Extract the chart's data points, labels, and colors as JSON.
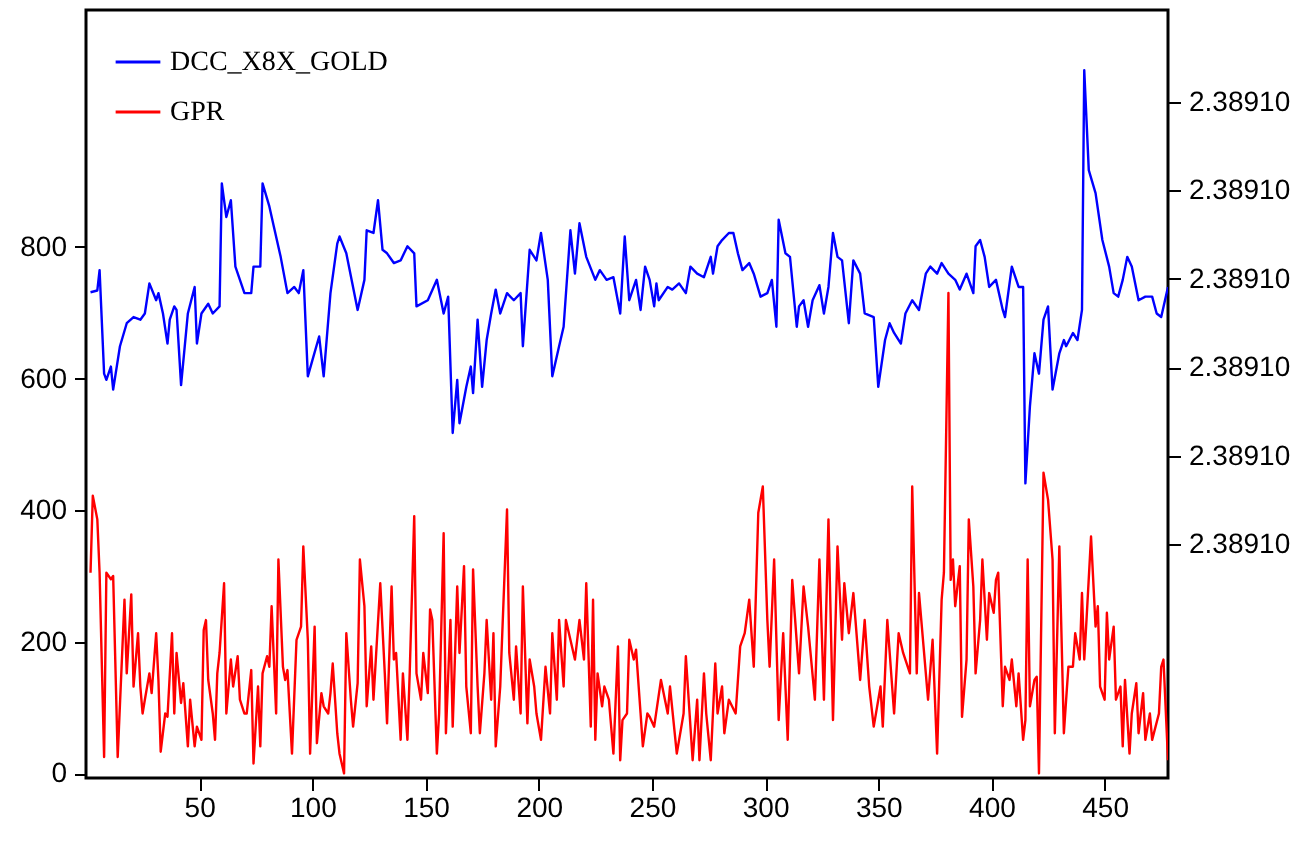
{
  "chart_data": {
    "type": "line",
    "legend": "top left",
    "marker": "none",
    "line_style": "solid",
    "xlim": [
      0,
      478
    ],
    "xticks": [
      50,
      100,
      150,
      200,
      250,
      300,
      350,
      400,
      450
    ],
    "ylim": [
      -7,
      1160
    ],
    "yticks": [
      0,
      200,
      400,
      600,
      800
    ],
    "y2lim": [
      2.38909536,
      2.38910404
    ],
    "y2ticks": [
      {
        "value": 2.389098,
        "label": "2.38910"
      },
      {
        "value": 2.389099,
        "label": "2.38910"
      },
      {
        "value": 2.3891,
        "label": "2.38910"
      },
      {
        "value": 2.389101,
        "label": "2.38910"
      },
      {
        "value": 2.389102,
        "label": "2.38910"
      },
      {
        "value": 2.389103,
        "label": "2.38910"
      }
    ],
    "series": [
      {
        "name": "DCC_X8X_GOLD",
        "color": "#0000ff",
        "axis": "y2",
        "x": [
          2,
          5,
          6,
          8,
          9,
          11,
          12,
          15,
          18,
          21,
          24,
          26,
          28,
          31,
          32,
          34,
          36,
          37,
          39,
          40,
          42,
          45,
          48,
          49,
          51,
          54,
          56,
          59,
          60,
          62,
          64,
          66,
          70,
          73,
          74,
          77,
          78,
          81,
          83,
          86,
          89,
          92,
          94,
          96,
          98,
          100,
          103,
          105,
          108,
          111,
          112,
          115,
          120,
          123,
          124,
          127,
          129,
          131,
          133,
          136,
          139,
          142,
          145,
          146,
          151,
          155,
          158,
          160,
          162,
          164,
          165,
          168,
          170,
          171,
          173,
          175,
          177,
          179,
          181,
          183,
          186,
          189,
          192,
          193,
          196,
          199,
          201,
          204,
          206,
          209,
          211,
          214,
          216,
          218,
          221,
          225,
          227,
          230,
          233,
          236,
          238,
          240,
          243,
          245,
          247,
          249,
          251,
          252,
          253,
          257,
          259,
          262,
          265,
          267,
          270,
          273,
          276,
          277,
          279,
          281,
          284,
          286,
          288,
          290,
          293,
          295,
          298,
          301,
          303,
          305,
          306,
          309,
          311,
          314,
          315,
          317,
          319,
          321,
          324,
          326,
          328,
          330,
          332,
          334,
          337,
          339,
          342,
          344,
          348,
          350,
          353,
          355,
          357,
          360,
          362,
          365,
          368,
          371,
          373,
          376,
          378,
          381,
          384,
          386,
          389,
          392,
          393,
          395,
          397,
          399,
          402,
          405,
          406,
          409,
          412,
          414,
          415,
          417,
          419,
          421,
          423,
          425,
          427,
          430,
          432,
          433,
          436,
          438,
          440,
          441,
          443,
          446,
          449,
          452,
          454,
          456,
          458,
          460,
          462,
          465,
          468,
          471,
          473,
          475,
          478
        ],
        "values": [
          2.38910085,
          2.38910087,
          2.3891011,
          2.38909993,
          2.38909986,
          2.38910001,
          2.38909975,
          2.38910024,
          2.3891005,
          2.38910057,
          2.38910054,
          2.38910061,
          2.38910095,
          2.38910076,
          2.38910084,
          2.38910061,
          2.38910027,
          2.38910054,
          2.38910069,
          2.38910065,
          2.3890998,
          2.38910061,
          2.38910091,
          2.38910027,
          2.38910061,
          2.38910072,
          2.38910061,
          2.38910069,
          2.38910208,
          2.3891017,
          2.38910189,
          2.38910114,
          2.38910084,
          2.38910084,
          2.38910114,
          2.38910114,
          2.38910208,
          2.38910182,
          2.38910159,
          2.38910125,
          2.38910084,
          2.38910091,
          2.38910084,
          2.3891011,
          2.3890999,
          2.38910008,
          2.38910035,
          2.3890999,
          2.38910084,
          2.3891014,
          2.38910148,
          2.38910129,
          2.38910065,
          2.38910099,
          2.38910155,
          2.38910152,
          2.38910189,
          2.38910133,
          2.38910129,
          2.38910118,
          2.38910121,
          2.38910137,
          2.38910129,
          2.38910069,
          2.38910076,
          2.38910099,
          2.38910061,
          2.3891008,
          2.38909926,
          2.38909986,
          2.38909937,
          2.38909978,
          2.38910001,
          2.38909971,
          2.38910054,
          2.38909978,
          2.38910031,
          2.38910061,
          2.38910088,
          2.38910061,
          2.38910084,
          2.38910076,
          2.38910084,
          2.38910024,
          2.38910133,
          2.38910121,
          2.38910152,
          2.38910099,
          2.3890999,
          2.38910024,
          2.38910046,
          2.38910155,
          2.38910106,
          2.38910163,
          2.38910125,
          2.38910099,
          2.3891011,
          2.38910099,
          2.38910102,
          2.38910061,
          2.38910148,
          2.38910076,
          2.38910099,
          2.38910065,
          2.38910114,
          2.38910099,
          2.38910069,
          2.38910095,
          2.38910076,
          2.38910091,
          2.38910088,
          2.38910095,
          2.38910084,
          2.38910114,
          2.38910106,
          2.38910102,
          2.38910125,
          2.38910106,
          2.38910137,
          2.38910144,
          2.38910152,
          2.38910152,
          2.38910129,
          2.3891011,
          2.38910118,
          2.38910106,
          2.3891008,
          2.38910084,
          2.38910099,
          2.38910046,
          2.38910167,
          2.38910129,
          2.38910125,
          2.38910046,
          2.38910069,
          2.38910076,
          2.38910046,
          2.38910076,
          2.38910093,
          2.38910061,
          2.38910091,
          2.38910152,
          2.38910125,
          2.38910121,
          2.3891005,
          2.38910121,
          2.38910106,
          2.38910061,
          2.38910057,
          2.38909978,
          2.38910031,
          2.3891005,
          2.38910039,
          2.38910027,
          2.38910061,
          2.38910076,
          2.38910065,
          2.38910106,
          2.38910114,
          2.38910106,
          2.38910118,
          2.38910106,
          2.38910099,
          2.38910088,
          2.38910106,
          2.38910084,
          2.38910137,
          2.38910144,
          2.38910125,
          2.38910091,
          2.38910099,
          2.38910065,
          2.38910057,
          2.38910114,
          2.38910091,
          2.38910091,
          2.38909869,
          2.38909956,
          2.38910016,
          2.38909993,
          2.38910054,
          2.38910069,
          2.38909975,
          2.38910016,
          2.38910031,
          2.38910024,
          2.38910039,
          2.38910031,
          2.38910065,
          2.38910336,
          2.38910223,
          2.38910197,
          2.38910144,
          2.38910114,
          2.38910084,
          2.3891008,
          2.38910099,
          2.38910125,
          2.38910114,
          2.38910076,
          2.3891008,
          2.3891008,
          2.38910061,
          2.38910057,
          2.38910091
        ]
      },
      {
        "name": "GPR",
        "color": "#ff0000",
        "x": [
          2,
          3,
          5,
          6,
          8,
          9,
          11,
          12,
          14,
          17,
          18,
          20,
          21,
          23,
          24,
          25,
          26,
          28,
          29,
          31,
          32,
          33,
          35,
          36,
          38,
          39,
          40,
          42,
          43,
          45,
          46,
          48,
          49,
          51,
          52,
          53,
          54,
          56,
          57,
          58,
          59,
          61,
          62,
          64,
          65,
          67,
          68,
          70,
          71,
          73,
          74,
          76,
          77,
          78,
          80,
          81,
          82,
          84,
          85,
          87,
          88,
          89,
          91,
          93,
          95,
          96,
          98,
          99,
          101,
          102,
          104,
          105,
          107,
          108,
          109,
          111,
          112,
          114,
          115,
          117,
          118,
          120,
          121,
          123,
          124,
          126,
          127,
          130,
          132,
          133,
          135,
          136,
          137,
          139,
          140,
          142,
          143,
          145,
          146,
          148,
          149,
          151,
          152,
          153,
          155,
          156,
          158,
          159,
          161,
          162,
          164,
          165,
          167,
          168,
          170,
          171,
          173,
          174,
          176,
          177,
          179,
          180,
          181,
          183,
          186,
          187,
          189,
          190,
          192,
          193,
          195,
          196,
          198,
          199,
          201,
          203,
          205,
          206,
          208,
          209,
          211,
          212,
          214,
          216,
          218,
          220,
          221,
          223,
          224,
          225,
          226,
          228,
          229,
          231,
          233,
          235,
          236,
          237,
          239,
          240,
          242,
          243,
          245,
          246,
          248,
          249,
          251,
          254,
          257,
          258,
          261,
          264,
          265,
          268,
          270,
          271,
          273,
          274,
          276,
          278,
          279,
          281,
          282,
          284,
          287,
          289,
          291,
          293,
          295,
          297,
          299,
          301,
          302,
          304,
          306,
          308,
          310,
          312,
          315,
          317,
          319,
          322,
          324,
          326,
          328,
          330,
          332,
          334,
          335,
          337,
          339,
          342,
          344,
          346,
          348,
          351,
          352,
          354,
          357,
          359,
          361,
          364,
          365,
          367,
          368,
          370,
          372,
          374,
          376,
          378,
          379,
          381,
          382,
          383,
          384,
          386,
          387,
          389,
          390,
          392,
          393,
          395,
          396,
          398,
          399,
          401,
          402,
          403,
          405,
          406,
          408,
          409,
          411,
          412,
          414,
          415,
          416,
          417,
          419,
          420,
          421,
          423,
          425,
          427,
          428,
          430,
          432,
          433,
          434,
          436,
          437,
          439,
          440,
          441,
          442,
          444,
          446,
          447,
          448,
          450,
          451,
          452,
          454,
          455,
          457,
          458,
          459,
          461,
          462,
          464,
          465,
          467,
          468,
          470,
          471,
          474,
          475,
          476,
          478
        ],
        "values": [
          305,
          422,
          386,
          305,
          25,
          305,
          295,
          300,
          25,
          264,
          152,
          272,
          132,
          213,
          132,
          91,
          112,
          152,
          122,
          213,
          142,
          33,
          91,
          86,
          213,
          91,
          183,
          107,
          137,
          41,
          112,
          41,
          71,
          51,
          218,
          233,
          142,
          91,
          51,
          152,
          183,
          289,
          91,
          173,
          132,
          178,
          112,
          91,
          91,
          157,
          15,
          132,
          41,
          152,
          178,
          162,
          254,
          91,
          325,
          162,
          142,
          157,
          30,
          203,
          223,
          345,
          203,
          30,
          223,
          46,
          122,
          102,
          91,
          122,
          167,
          61,
          30,
          0,
          213,
          112,
          71,
          137,
          325,
          254,
          102,
          193,
          112,
          289,
          152,
          76,
          284,
          173,
          183,
          51,
          152,
          51,
          152,
          391,
          152,
          112,
          183,
          122,
          249,
          233,
          30,
          91,
          365,
          61,
          233,
          71,
          284,
          183,
          315,
          132,
          61,
          310,
          132,
          61,
          152,
          233,
          112,
          213,
          41,
          132,
          401,
          183,
          112,
          193,
          91,
          284,
          76,
          173,
          132,
          91,
          51,
          162,
          91,
          213,
          112,
          233,
          132,
          233,
          203,
          173,
          233,
          173,
          289,
          71,
          264,
          51,
          152,
          102,
          132,
          112,
          30,
          193,
          20,
          81,
          91,
          203,
          173,
          188,
          91,
          41,
          91,
          86,
          71,
          142,
          91,
          132,
          30,
          91,
          178,
          20,
          112,
          20,
          152,
          91,
          20,
          167,
          91,
          132,
          61,
          112,
          91,
          193,
          213,
          264,
          162,
          396,
          436,
          233,
          162,
          325,
          81,
          213,
          51,
          294,
          152,
          284,
          223,
          112,
          325,
          112,
          386,
          81,
          345,
          203,
          289,
          213,
          274,
          142,
          233,
          132,
          71,
          132,
          71,
          233,
          91,
          213,
          183,
          152,
          436,
          152,
          274,
          193,
          112,
          203,
          30,
          264,
          305,
          730,
          294,
          325,
          254,
          315,
          86,
          173,
          386,
          284,
          152,
          233,
          325,
          203,
          274,
          244,
          294,
          305,
          102,
          162,
          142,
          173,
          102,
          152,
          51,
          81,
          325,
          102,
          142,
          147,
          0,
          457,
          416,
          325,
          61,
          345,
          61,
          112,
          162,
          162,
          213,
          173,
          274,
          173,
          233,
          360,
          223,
          254,
          132,
          112,
          244,
          173,
          223,
          112,
          132,
          41,
          142,
          30,
          91,
          137,
          61,
          122,
          51,
          91,
          51,
          91,
          162,
          173,
          20
        ]
      }
    ]
  }
}
